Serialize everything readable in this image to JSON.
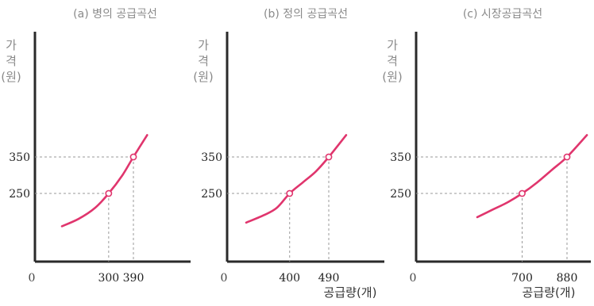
{
  "chart_data": [
    {
      "type": "line",
      "title": "(a) 병의 공급곡선",
      "ylabel": "가격(원)",
      "xlabel": "",
      "origin_label": "0",
      "x_ticks": [
        300,
        390
      ],
      "y_ticks": [
        250,
        350
      ],
      "series": [
        {
          "x": [
            130,
            190,
            250,
            300,
            350,
            390,
            440
          ],
          "y": [
            160,
            180,
            210,
            250,
            300,
            350,
            410
          ]
        }
      ],
      "marked_points": [
        {
          "x": 300,
          "y": 250
        },
        {
          "x": 390,
          "y": 350
        }
      ],
      "colors": {
        "curve": "#e0356d",
        "axis": "#2a2a2a",
        "guide": "#9a9a9a"
      }
    },
    {
      "type": "line",
      "title": "(b) 정의 공급곡선",
      "ylabel": "가격(원)",
      "xlabel": "공급량(개)",
      "origin_label": "0",
      "x_ticks": [
        400,
        490
      ],
      "y_ticks": [
        250,
        350
      ],
      "series": [
        {
          "x": [
            300,
            340,
            370,
            400,
            430,
            460,
            490,
            530
          ],
          "y": [
            170,
            190,
            210,
            250,
            280,
            310,
            350,
            410
          ]
        }
      ],
      "marked_points": [
        {
          "x": 400,
          "y": 250
        },
        {
          "x": 490,
          "y": 350
        }
      ],
      "colors": {
        "curve": "#e0356d",
        "axis": "#2a2a2a",
        "guide": "#9a9a9a"
      }
    },
    {
      "type": "line",
      "title": "(c) 시장공급곡선",
      "ylabel": "가격(원)",
      "xlabel": "공급량(개)",
      "origin_label": "0",
      "x_ticks": [
        700,
        880
      ],
      "y_ticks": [
        250,
        350
      ],
      "series": [
        {
          "x": [
            520,
            580,
            640,
            700,
            760,
            820,
            880,
            960
          ],
          "y": [
            185,
            205,
            225,
            250,
            280,
            315,
            350,
            410
          ]
        }
      ],
      "marked_points": [
        {
          "x": 700,
          "y": 250
        },
        {
          "x": 880,
          "y": 350
        }
      ],
      "colors": {
        "curve": "#e0356d",
        "axis": "#2a2a2a",
        "guide": "#9a9a9a"
      }
    }
  ]
}
